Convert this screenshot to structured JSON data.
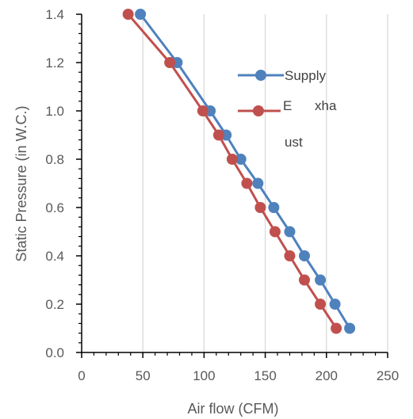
{
  "chart_data": {
    "type": "scatter",
    "title": "",
    "xlabel": "Air flow (CFM)",
    "ylabel": "Static Pressure (in W.C.)",
    "xlim": [
      0,
      250
    ],
    "ylim": [
      0.0,
      1.4
    ],
    "x_ticks": [
      "0",
      "50",
      "100",
      "150",
      "200",
      "250"
    ],
    "y_ticks": [
      "0.0",
      "0.2",
      "0.4",
      "0.6",
      "0.8",
      "1.0",
      "1.2",
      "1.4"
    ],
    "grid": "vertical major gridlines",
    "legend_position": "right, upper",
    "series": [
      {
        "name": "Supply",
        "color": "#4f81bd",
        "points": [
          {
            "x": 48,
            "y": 1.4
          },
          {
            "x": 78,
            "y": 1.2
          },
          {
            "x": 105,
            "y": 1.0
          },
          {
            "x": 118,
            "y": 0.9
          },
          {
            "x": 130,
            "y": 0.8
          },
          {
            "x": 144,
            "y": 0.7
          },
          {
            "x": 157,
            "y": 0.6
          },
          {
            "x": 170,
            "y": 0.5
          },
          {
            "x": 182,
            "y": 0.4
          },
          {
            "x": 195,
            "y": 0.3
          },
          {
            "x": 207,
            "y": 0.2
          },
          {
            "x": 219,
            "y": 0.1
          }
        ]
      },
      {
        "name": "E     xha\n\nust",
        "color": "#c0504d",
        "points": [
          {
            "x": 38,
            "y": 1.4
          },
          {
            "x": 72,
            "y": 1.2
          },
          {
            "x": 99,
            "y": 1.0
          },
          {
            "x": 112,
            "y": 0.9
          },
          {
            "x": 123,
            "y": 0.8
          },
          {
            "x": 135,
            "y": 0.7
          },
          {
            "x": 146,
            "y": 0.6
          },
          {
            "x": 158,
            "y": 0.5
          },
          {
            "x": 170,
            "y": 0.4
          },
          {
            "x": 182,
            "y": 0.3
          },
          {
            "x": 195,
            "y": 0.2
          },
          {
            "x": 208,
            "y": 0.1
          }
        ]
      }
    ],
    "legend": {
      "supply_label": "Supply",
      "exhaust_label_line1": "E",
      "exhaust_label_line1b": "xha",
      "exhaust_label_line2": "ust"
    },
    "colors": {
      "gridline": "#d9d9d9",
      "axis": "#000000",
      "text": "#595959"
    }
  }
}
